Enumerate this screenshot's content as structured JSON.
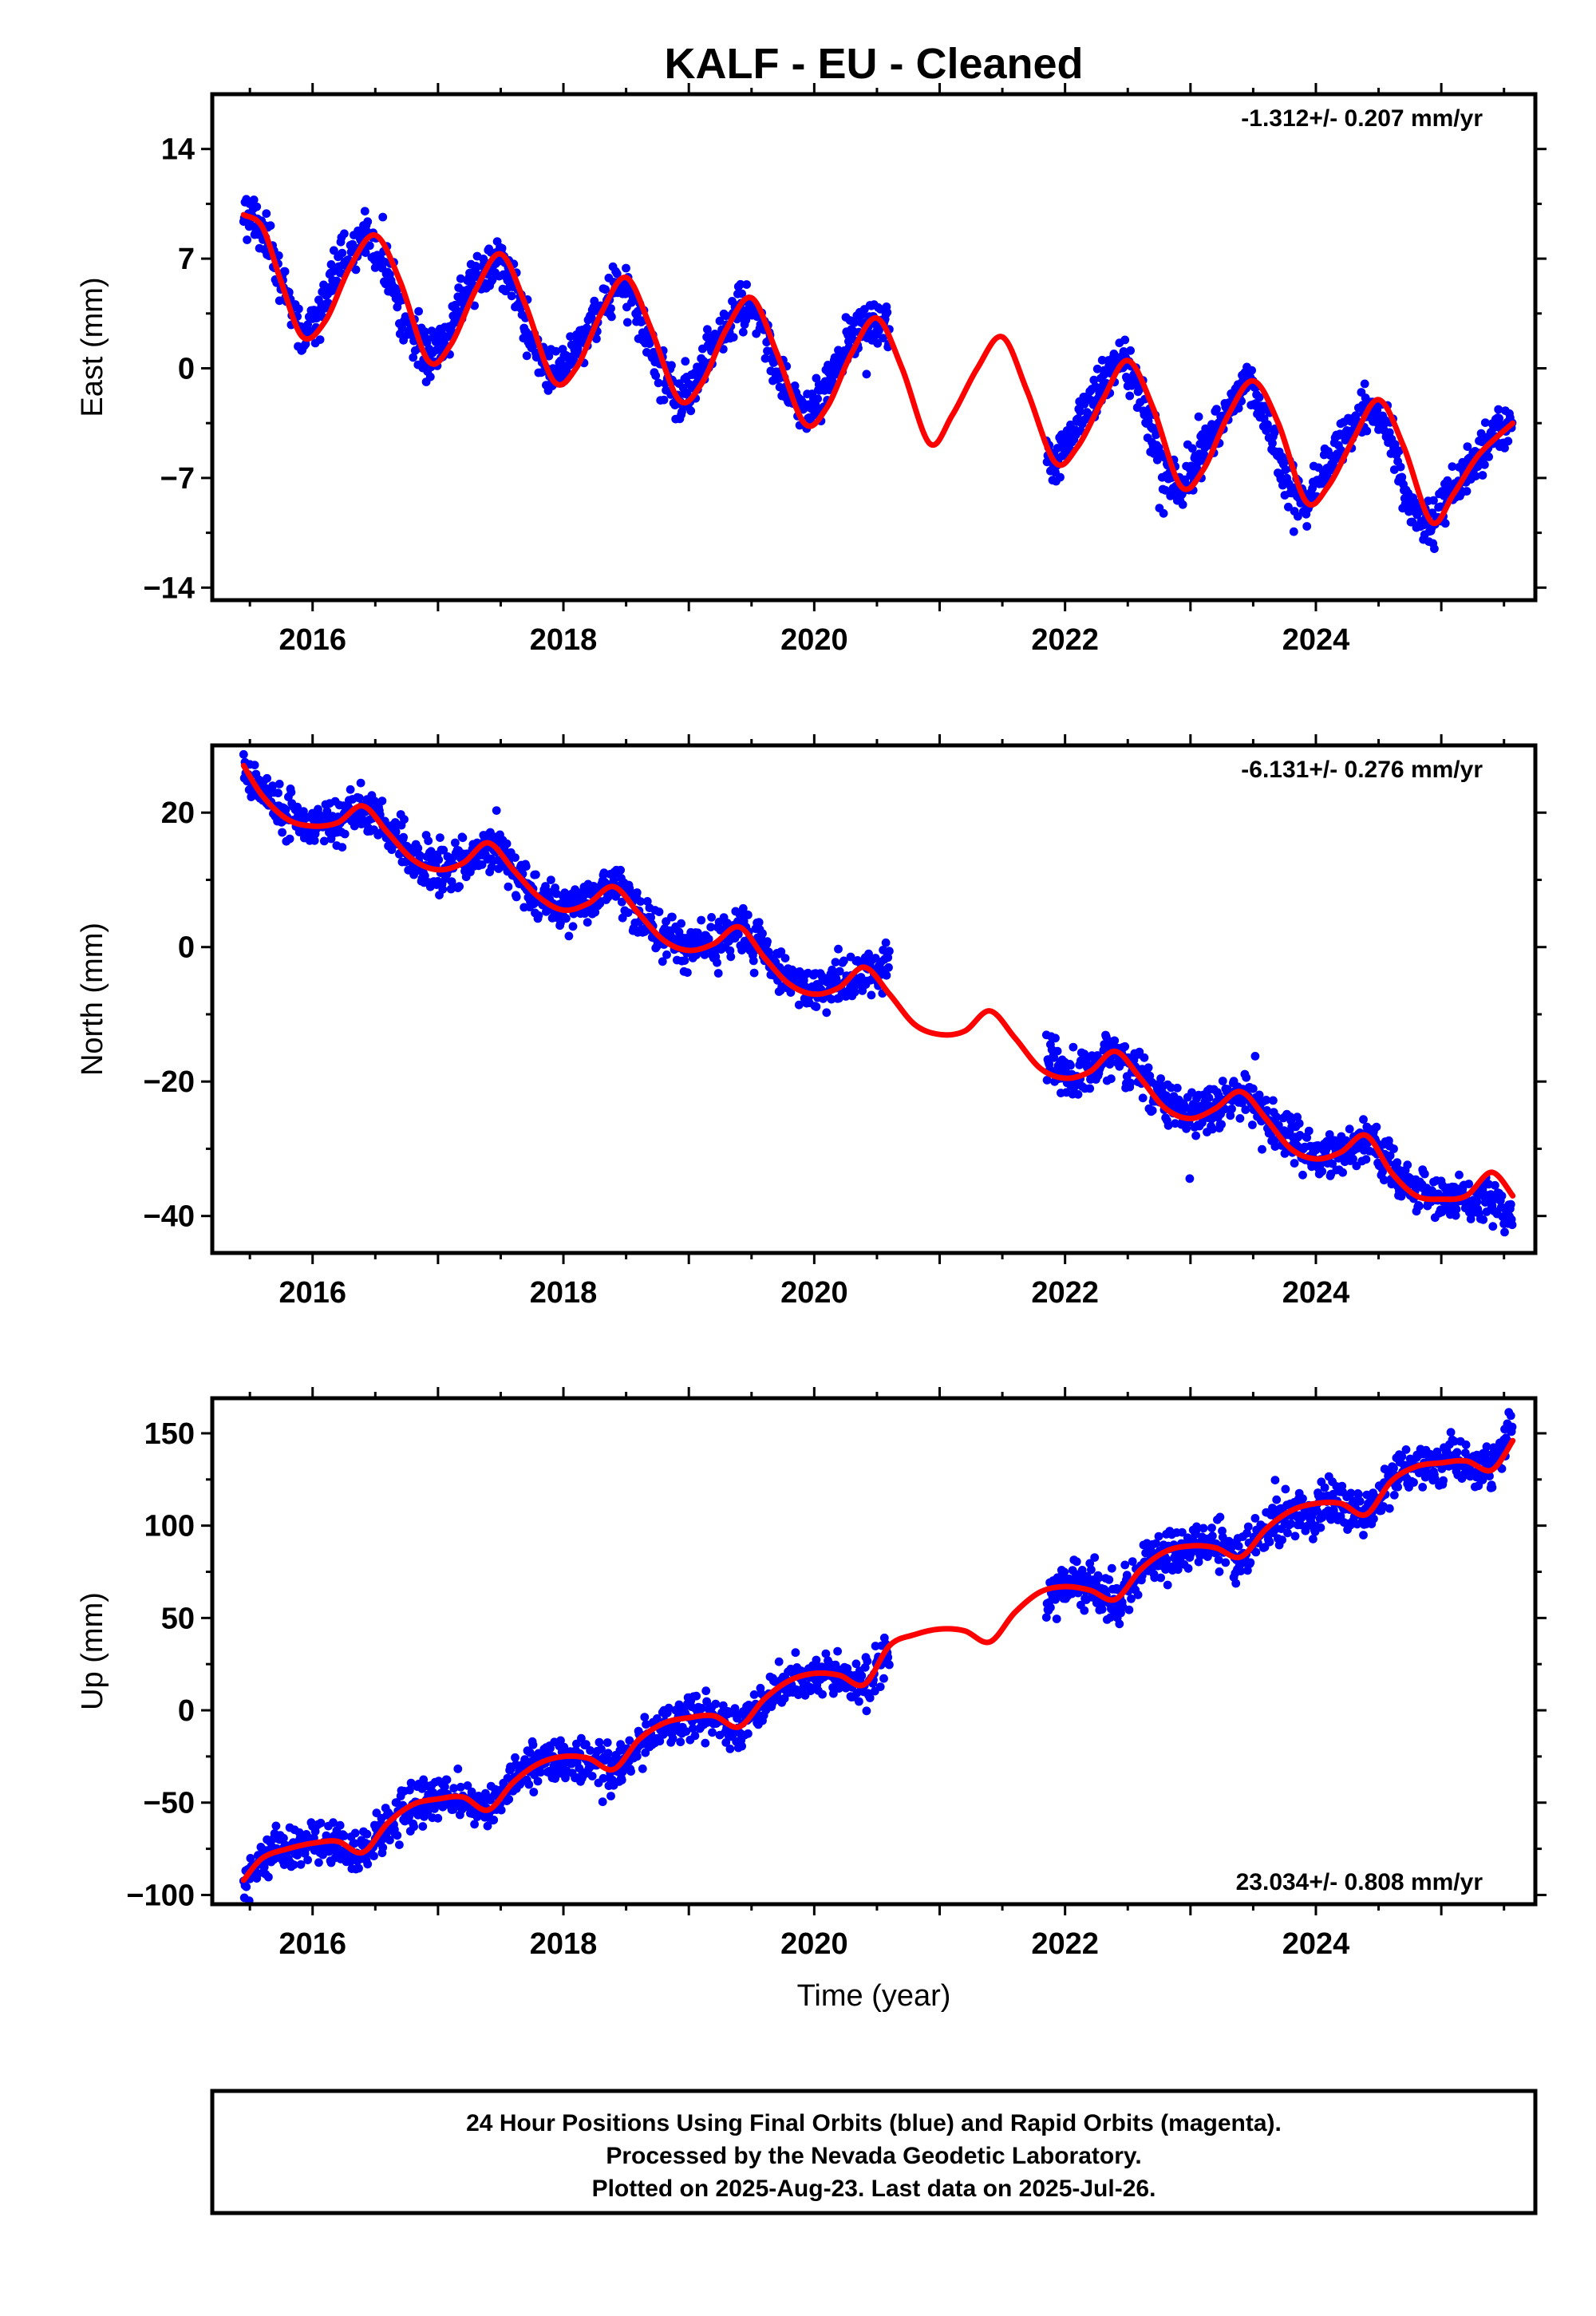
{
  "title": "KALF  - EU - Cleaned",
  "xlabel": "Time (year)",
  "footer": {
    "line1": "24 Hour Positions Using Final Orbits (blue) and Rapid Orbits (magenta).",
    "line2": "Processed by the Nevada Geodetic Laboratory.",
    "line3": "Plotted on 2025-Aug-23. Last data on 2025-Jul-26."
  },
  "colors": {
    "observations": "#0000ff",
    "model": "#ff0000",
    "frame": "#000000"
  },
  "chart_data": [
    {
      "type": "scatter",
      "component": "east",
      "ylabel": "East (mm)",
      "rate_label": "-1.312+/- 0.207 mm/yr",
      "xlim": [
        2015.2,
        2025.75
      ],
      "ylim": [
        -14.8,
        17.5
      ],
      "xticks": [
        "2016",
        "2018",
        "2020",
        "2022",
        "2024"
      ],
      "yticks": [
        "14",
        "7",
        "0",
        "−7",
        "−14"
      ],
      "ytick_values": [
        14,
        7,
        0,
        -7,
        -14
      ],
      "data_gap": [
        2020.6,
        2021.85
      ],
      "series": [
        {
          "role": "observations",
          "x": [
            2015.45,
            2015.6,
            2015.75,
            2015.92,
            2016.05,
            2016.25,
            2016.45,
            2016.6,
            2016.75,
            2016.92,
            2017.05,
            2017.25,
            2017.45,
            2017.6,
            2017.75,
            2017.92,
            2018.05,
            2018.25,
            2018.45,
            2018.6,
            2018.75,
            2018.92,
            2019.05,
            2019.25,
            2019.45,
            2019.6,
            2019.75,
            2019.92,
            2020.05,
            2020.25,
            2020.45,
            2020.58,
            2021.9,
            2022.0,
            2022.2,
            2022.45,
            2022.6,
            2022.75,
            2022.92,
            2023.05,
            2023.25,
            2023.45,
            2023.6,
            2023.75,
            2023.92,
            2024.05,
            2024.25,
            2024.45,
            2024.6,
            2024.75,
            2024.92,
            2025.05,
            2025.25,
            2025.45,
            2025.57
          ],
          "y": [
            9.8,
            9.0,
            5.5,
            2.0,
            3.5,
            7.0,
            8.5,
            6.0,
            2.5,
            0.8,
            2.0,
            5.5,
            7.0,
            5.5,
            1.5,
            -0.5,
            0.5,
            3.5,
            5.5,
            3.5,
            0.0,
            -2.0,
            -1.0,
            2.0,
            4.0,
            2.5,
            -1.0,
            -3.0,
            -2.0,
            1.0,
            3.0,
            2.5,
            -6.0,
            -5.0,
            -2.0,
            0.5,
            -1.5,
            -6.0,
            -7.5,
            -6.0,
            -3.0,
            -0.8,
            -3.0,
            -7.0,
            -8.5,
            -7.0,
            -4.0,
            -2.0,
            -4.5,
            -9.0,
            -10.0,
            -8.0,
            -6.0,
            -4.0,
            -3.5
          ]
        },
        {
          "role": "model",
          "x": [
            2015.45,
            2015.6,
            2015.75,
            2015.92,
            2016.1,
            2016.3,
            2016.5,
            2016.7,
            2016.92,
            2017.1,
            2017.3,
            2017.5,
            2017.7,
            2017.92,
            2018.1,
            2018.3,
            2018.5,
            2018.7,
            2018.92,
            2019.1,
            2019.3,
            2019.5,
            2019.7,
            2019.92,
            2020.1,
            2020.3,
            2020.5,
            2020.7,
            2020.92,
            2021.1,
            2021.3,
            2021.5,
            2021.7,
            2021.92,
            2022.1,
            2022.3,
            2022.5,
            2022.7,
            2022.92,
            2023.1,
            2023.3,
            2023.5,
            2023.7,
            2023.92,
            2024.1,
            2024.3,
            2024.5,
            2024.7,
            2024.92,
            2025.1,
            2025.3,
            2025.57
          ],
          "y": [
            9.8,
            9.0,
            5.5,
            2.0,
            3.0,
            6.5,
            8.5,
            5.5,
            0.5,
            1.5,
            5.0,
            7.3,
            4.0,
            -0.8,
            0.0,
            3.5,
            5.8,
            2.5,
            -2.0,
            -1.0,
            2.5,
            4.5,
            1.0,
            -3.5,
            -2.5,
            1.0,
            3.2,
            0.0,
            -4.8,
            -3.0,
            0.0,
            2.0,
            -1.5,
            -6.0,
            -5.0,
            -2.0,
            0.5,
            -2.5,
            -7.5,
            -6.5,
            -3.0,
            -0.8,
            -3.5,
            -8.5,
            -7.5,
            -4.5,
            -2.0,
            -5.0,
            -9.8,
            -8.0,
            -5.5,
            -3.5
          ]
        }
      ]
    },
    {
      "type": "scatter",
      "component": "north",
      "ylabel": "North (mm)",
      "rate_label": "-6.131+/- 0.276 mm/yr",
      "xlim": [
        2015.2,
        2025.75
      ],
      "ylim": [
        -45.5,
        30
      ],
      "xticks": [
        "2016",
        "2018",
        "2020",
        "2022",
        "2024"
      ],
      "yticks": [
        "20",
        "0",
        "−20",
        "−40"
      ],
      "ytick_values": [
        20,
        0,
        -20,
        -40
      ],
      "data_gap": [
        2020.6,
        2021.85
      ],
      "series": [
        {
          "role": "observations",
          "x": [
            2015.45,
            2015.6,
            2015.8,
            2016.0,
            2016.2,
            2016.4,
            2016.6,
            2016.8,
            2017.0,
            2017.2,
            2017.4,
            2017.6,
            2017.8,
            2018.0,
            2018.2,
            2018.4,
            2018.6,
            2018.8,
            2019.0,
            2019.2,
            2019.4,
            2019.6,
            2019.8,
            2020.0,
            2020.2,
            2020.4,
            2020.58,
            2021.9,
            2022.0,
            2022.2,
            2022.4,
            2022.6,
            2022.8,
            2023.0,
            2023.2,
            2023.4,
            2023.6,
            2023.8,
            2024.0,
            2024.2,
            2024.4,
            2024.6,
            2024.8,
            2025.0,
            2025.2,
            2025.4,
            2025.57
          ],
          "y": [
            26.0,
            22.5,
            19.5,
            18.0,
            18.5,
            21.0,
            17.5,
            13.0,
            11.5,
            12.5,
            15.5,
            12.0,
            7.5,
            6.0,
            7.0,
            9.0,
            5.5,
            1.5,
            0.0,
            1.0,
            3.0,
            -1.0,
            -5.0,
            -6.5,
            -5.5,
            -3.5,
            -3.0,
            -17.0,
            -18.5,
            -18.0,
            -15.5,
            -19.0,
            -23.0,
            -25.5,
            -24.0,
            -21.5,
            -25.0,
            -29.0,
            -31.0,
            -30.5,
            -28.5,
            -33.0,
            -36.5,
            -37.5,
            -37.0,
            -38.0,
            -41.0
          ]
        },
        {
          "role": "model",
          "x": [
            2015.45,
            2015.6,
            2015.8,
            2016.0,
            2016.2,
            2016.4,
            2016.6,
            2016.8,
            2017.0,
            2017.2,
            2017.4,
            2017.6,
            2017.8,
            2018.0,
            2018.2,
            2018.4,
            2018.6,
            2018.8,
            2019.0,
            2019.2,
            2019.4,
            2019.6,
            2019.8,
            2020.0,
            2020.2,
            2020.4,
            2020.6,
            2020.8,
            2021.0,
            2021.2,
            2021.4,
            2021.6,
            2021.8,
            2022.0,
            2022.2,
            2022.4,
            2022.6,
            2022.8,
            2023.0,
            2023.2,
            2023.4,
            2023.6,
            2023.8,
            2024.0,
            2024.2,
            2024.4,
            2024.6,
            2024.8,
            2025.0,
            2025.2,
            2025.4,
            2025.57
          ],
          "y": [
            27.0,
            22.5,
            19.0,
            18.0,
            18.5,
            21.0,
            17.0,
            13.0,
            11.5,
            12.5,
            15.5,
            11.5,
            7.5,
            5.5,
            6.5,
            9.0,
            5.0,
            1.0,
            -0.5,
            0.5,
            3.0,
            -1.5,
            -5.5,
            -7.0,
            -6.0,
            -3.0,
            -7.0,
            -11.5,
            -13.0,
            -12.5,
            -9.5,
            -13.5,
            -18.0,
            -19.5,
            -18.5,
            -15.5,
            -19.5,
            -24.0,
            -25.5,
            -24.0,
            -21.5,
            -25.5,
            -30.0,
            -31.5,
            -30.5,
            -28.0,
            -33.5,
            -37.0,
            -37.5,
            -37.0,
            -33.5,
            -37.0
          ]
        }
      ]
    },
    {
      "type": "scatter",
      "component": "up",
      "ylabel": "Up (mm)",
      "rate_label": "23.034+/- 0.808 mm/yr",
      "xlabel": "Time (year)",
      "xlim": [
        2015.2,
        2025.75
      ],
      "ylim": [
        -105,
        169
      ],
      "xticks": [
        "2016",
        "2018",
        "2020",
        "2022",
        "2024"
      ],
      "yticks": [
        "150",
        "100",
        "50",
        "0",
        "−50",
        "−100"
      ],
      "ytick_values": [
        150,
        100,
        50,
        0,
        -50,
        -100
      ],
      "data_gap": [
        2020.6,
        2021.85
      ],
      "series": [
        {
          "role": "observations",
          "x": [
            2015.45,
            2015.6,
            2015.8,
            2016.0,
            2016.2,
            2016.4,
            2016.6,
            2016.8,
            2017.0,
            2017.2,
            2017.4,
            2017.6,
            2017.8,
            2018.0,
            2018.2,
            2018.4,
            2018.6,
            2018.8,
            2019.0,
            2019.2,
            2019.4,
            2019.6,
            2019.8,
            2020.0,
            2020.2,
            2020.4,
            2020.58,
            2021.9,
            2022.0,
            2022.2,
            2022.4,
            2022.6,
            2022.8,
            2023.0,
            2023.2,
            2023.4,
            2023.6,
            2023.8,
            2024.0,
            2024.2,
            2024.4,
            2024.6,
            2024.8,
            2025.0,
            2025.2,
            2025.4,
            2025.57
          ],
          "y": [
            -92.0,
            -80.0,
            -76.0,
            -73.0,
            -72.0,
            -78.0,
            -62.0,
            -52.0,
            -49.0,
            -47.0,
            -55.0,
            -40.0,
            -30.0,
            -26.0,
            -27.0,
            -33.0,
            -17.0,
            -8.0,
            -4.0,
            -3.0,
            -10.0,
            5.0,
            15.0,
            20.0,
            19.0,
            14.0,
            28.0,
            63.0,
            66.0,
            65.0,
            60.0,
            74.0,
            84.0,
            88.0,
            89.0,
            84.0,
            97.0,
            105.0,
            110.0,
            111.0,
            106.0,
            124.0,
            132.0,
            135.0,
            136.0,
            130.0,
            155.0
          ]
        },
        {
          "role": "model",
          "x": [
            2015.45,
            2015.6,
            2015.8,
            2016.0,
            2016.2,
            2016.4,
            2016.6,
            2016.8,
            2017.0,
            2017.2,
            2017.4,
            2017.6,
            2017.8,
            2018.0,
            2018.2,
            2018.4,
            2018.6,
            2018.8,
            2019.0,
            2019.2,
            2019.4,
            2019.6,
            2019.8,
            2020.0,
            2020.2,
            2020.4,
            2020.6,
            2020.8,
            2021.0,
            2021.2,
            2021.4,
            2021.6,
            2021.8,
            2022.0,
            2022.2,
            2022.4,
            2022.6,
            2022.8,
            2023.0,
            2023.2,
            2023.4,
            2023.6,
            2023.8,
            2024.0,
            2024.2,
            2024.4,
            2024.6,
            2024.8,
            2025.0,
            2025.2,
            2025.4,
            2025.57
          ],
          "y": [
            -92.0,
            -80.0,
            -75.0,
            -72.0,
            -71.0,
            -77.0,
            -61.0,
            -51.0,
            -48.0,
            -47.0,
            -54.0,
            -39.0,
            -29.0,
            -25.0,
            -26.0,
            -32.0,
            -16.0,
            -7.0,
            -4.0,
            -3.0,
            -9.0,
            6.0,
            16.0,
            20.0,
            19.0,
            14.0,
            35.0,
            41.0,
            44.0,
            43.0,
            37.0,
            53.0,
            64.0,
            67.0,
            65.0,
            60.0,
            76.0,
            86.0,
            89.0,
            88.0,
            83.0,
            98.0,
            108.0,
            112.0,
            112.0,
            106.0,
            124.0,
            132.0,
            134.0,
            135.0,
            130.0,
            146.0
          ]
        }
      ]
    }
  ]
}
